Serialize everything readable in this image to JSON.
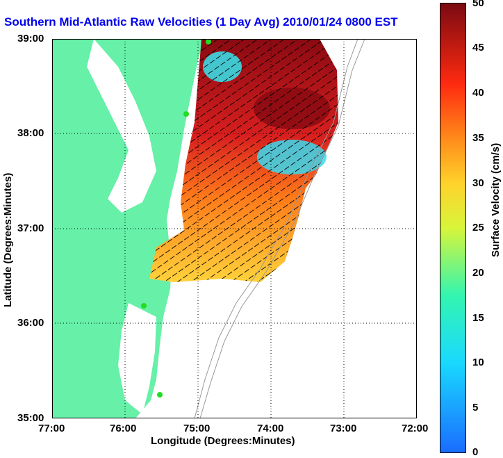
{
  "title": "Southern Mid-Atlantic Raw Velocities (1 Day Avg) 2010/01/24 0800 EST",
  "axes": {
    "xlabel": "Longitude (Degrees:Minutes)",
    "ylabel": "Latitude (Degrees:Minutes)",
    "xticks": [
      "77:00",
      "76:00",
      "75:00",
      "74:00",
      "73:00",
      "72:00"
    ],
    "yticks": [
      "39:00",
      "38:00",
      "37:00",
      "36:00",
      "35:00"
    ]
  },
  "colorbar": {
    "label": "Surface Velocity (cm/s)",
    "ticks": [
      "50",
      "45",
      "40",
      "35",
      "30",
      "25",
      "20",
      "15",
      "10",
      "5",
      "0"
    ],
    "min": 0,
    "max": 50
  },
  "colors": {
    "land": "#66f0a8",
    "ocean": "#ffffff",
    "title": "#0000ee",
    "station": "#22dd22"
  },
  "map": {
    "lon_range": [
      -77,
      -72
    ],
    "lat_range": [
      35,
      39
    ],
    "grid": "dotted"
  }
}
